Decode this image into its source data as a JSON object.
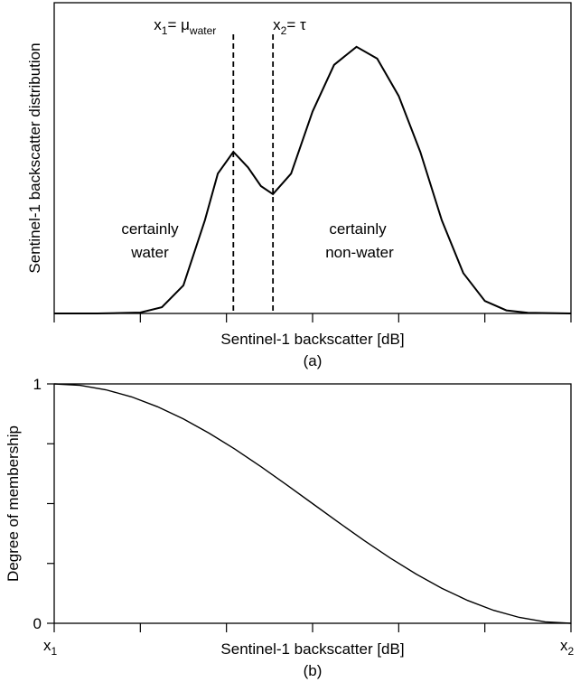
{
  "chart_data": [
    {
      "type": "line",
      "y_label": "Sentinel-1 backscatter distribution",
      "x_label": "Sentinel-1 backscatter [dB]",
      "caption": "(a)",
      "xlim": [
        0,
        6
      ],
      "ylim": [
        0,
        1
      ],
      "xticks": [
        0,
        1,
        2,
        3,
        4,
        5,
        6
      ],
      "x": [
        0,
        0.5,
        1.0,
        1.25,
        1.5,
        1.75,
        1.9,
        2.08,
        2.25,
        2.4,
        2.54,
        2.75,
        3.0,
        3.25,
        3.51,
        3.75,
        4.0,
        4.25,
        4.5,
        4.75,
        5.0,
        5.25,
        5.5,
        6
      ],
      "values": [
        0,
        0,
        0.003,
        0.02,
        0.09,
        0.3,
        0.45,
        0.52,
        0.47,
        0.41,
        0.384,
        0.45,
        0.65,
        0.8,
        0.858,
        0.82,
        0.7,
        0.52,
        0.3,
        0.13,
        0.04,
        0.01,
        0.002,
        0
      ],
      "color": "#000000",
      "markers": [
        {
          "x": 2.08,
          "label": [
            "x",
            "1",
            "= μ",
            "water"
          ]
        },
        {
          "x": 2.54,
          "label": [
            "x",
            "2",
            "= τ"
          ]
        }
      ],
      "annotations": [
        [
          "certainly",
          "water"
        ],
        [
          "certainly",
          "non-water"
        ]
      ]
    },
    {
      "type": "line",
      "y_label": "Degree of membership",
      "x_label": "Sentinel-1 backscatter [dB]",
      "caption": "(b)",
      "xlim": [
        0,
        6
      ],
      "ylim": [
        0,
        1
      ],
      "xticks": [
        0,
        1,
        2,
        3,
        4,
        5,
        6
      ],
      "yticks": [
        0,
        0.25,
        0.5,
        0.75,
        1
      ],
      "x": [
        0,
        0.3,
        0.6,
        0.9,
        1.2,
        1.5,
        1.8,
        2.1,
        2.4,
        2.7,
        3.0,
        3.3,
        3.6,
        3.9,
        4.2,
        4.5,
        4.8,
        5.1,
        5.4,
        5.7,
        6.0
      ],
      "values": [
        1,
        0.9938,
        0.9755,
        0.9455,
        0.9045,
        0.8536,
        0.7939,
        0.727,
        0.6545,
        0.5782,
        0.5,
        0.4218,
        0.3455,
        0.273,
        0.2061,
        0.1464,
        0.0955,
        0.0545,
        0.0245,
        0.0062,
        0
      ],
      "color": "#000000",
      "end_labels": [
        [
          "x",
          "1"
        ],
        [
          "x",
          "2"
        ]
      ]
    }
  ]
}
